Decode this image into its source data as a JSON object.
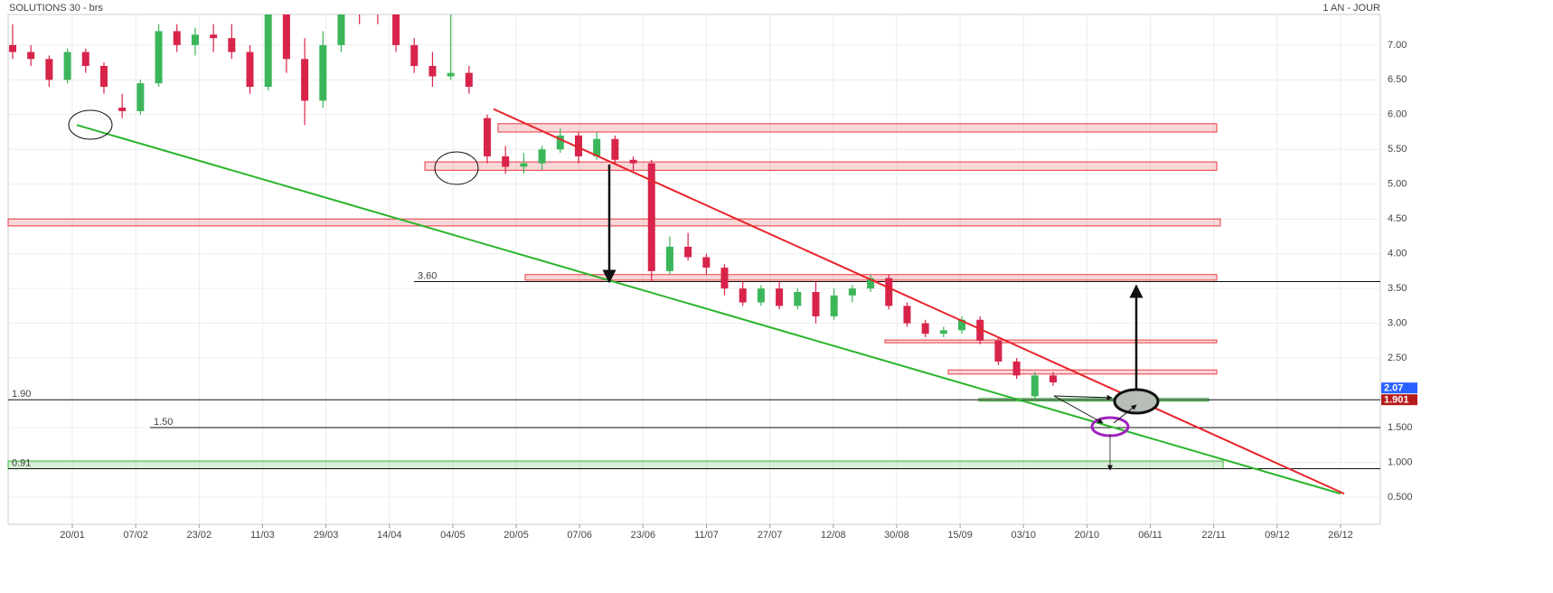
{
  "chart_data": {
    "type": "candlestick",
    "title": "SOLUTIONS 30 - brs",
    "period": "1 AN - JOUR",
    "ylim": [
      0.11,
      7.44
    ],
    "yticks": [
      {
        "value": 7,
        "label": "7.00"
      },
      {
        "value": 6.5,
        "label": "6.50"
      },
      {
        "value": 6,
        "label": "6.00"
      },
      {
        "value": 5.5,
        "label": "5.50"
      },
      {
        "value": 5,
        "label": "5.00"
      },
      {
        "value": 4.5,
        "label": "4.50"
      },
      {
        "value": 4,
        "label": "4.00"
      },
      {
        "value": 3.5,
        "label": "3.50"
      },
      {
        "value": 3,
        "label": "3.00"
      },
      {
        "value": 2.5,
        "label": "2.50"
      },
      {
        "value": 1.5,
        "label": "1.500"
      },
      {
        "value": 1,
        "label": "1.000"
      },
      {
        "value": 0.5,
        "label": "0.500"
      }
    ],
    "x_labels": [
      "20/01",
      "07/02",
      "23/02",
      "11/03",
      "29/03",
      "14/04",
      "04/05",
      "20/05",
      "07/06",
      "23/06",
      "11/07",
      "27/07",
      "12/08",
      "30/08",
      "15/09",
      "03/10",
      "20/10",
      "06/11",
      "22/11",
      "09/12",
      "26/12"
    ],
    "up_color": "#3cb65a",
    "down_color": "#d8244a",
    "candles": [
      [
        7.0,
        7.3,
        6.8,
        6.9
      ],
      [
        6.9,
        7.0,
        6.7,
        6.8
      ],
      [
        6.8,
        6.85,
        6.4,
        6.5
      ],
      [
        6.5,
        6.95,
        6.45,
        6.9
      ],
      [
        6.9,
        6.95,
        6.6,
        6.7
      ],
      [
        6.7,
        6.75,
        6.3,
        6.4
      ],
      [
        6.1,
        6.3,
        5.95,
        6.05
      ],
      [
        6.05,
        6.5,
        6.0,
        6.45
      ],
      [
        6.45,
        7.3,
        6.4,
        7.2
      ],
      [
        7.2,
        7.3,
        6.9,
        7.0
      ],
      [
        7.0,
        7.25,
        6.85,
        7.15
      ],
      [
        7.15,
        7.3,
        6.9,
        7.1
      ],
      [
        7.1,
        7.3,
        6.8,
        6.9
      ],
      [
        6.9,
        7.0,
        6.3,
        6.4
      ],
      [
        6.4,
        7.8,
        6.35,
        7.6
      ],
      [
        7.6,
        7.8,
        6.6,
        6.8
      ],
      [
        6.8,
        7.1,
        5.85,
        6.2
      ],
      [
        6.2,
        7.2,
        6.1,
        7.0
      ],
      [
        7.0,
        7.8,
        6.9,
        7.6
      ],
      [
        7.6,
        7.8,
        7.3,
        7.5
      ],
      [
        7.5,
        7.7,
        7.3,
        7.45
      ],
      [
        7.45,
        7.6,
        6.9,
        7.0
      ],
      [
        7.0,
        7.1,
        6.6,
        6.7
      ],
      [
        6.7,
        6.9,
        6.4,
        6.55
      ],
      [
        6.55,
        7.5,
        6.5,
        6.6
      ],
      [
        6.6,
        6.7,
        6.3,
        6.4
      ],
      [
        5.95,
        6.0,
        5.3,
        5.4
      ],
      [
        5.4,
        5.55,
        5.15,
        5.25
      ],
      [
        5.25,
        5.45,
        5.15,
        5.3
      ],
      [
        5.3,
        5.55,
        5.2,
        5.5
      ],
      [
        5.5,
        5.8,
        5.45,
        5.7
      ],
      [
        5.7,
        5.75,
        5.3,
        5.4
      ],
      [
        5.4,
        5.75,
        5.35,
        5.65
      ],
      [
        5.65,
        5.7,
        5.3,
        5.35
      ],
      [
        5.35,
        5.4,
        5.2,
        5.3
      ],
      [
        5.3,
        5.35,
        3.6,
        3.75
      ],
      [
        3.75,
        4.25,
        3.7,
        4.1
      ],
      [
        4.1,
        4.3,
        3.9,
        3.95
      ],
      [
        3.95,
        4.0,
        3.7,
        3.8
      ],
      [
        3.8,
        3.85,
        3.4,
        3.5
      ],
      [
        3.5,
        3.6,
        3.25,
        3.3
      ],
      [
        3.3,
        3.55,
        3.25,
        3.5
      ],
      [
        3.5,
        3.6,
        3.2,
        3.25
      ],
      [
        3.25,
        3.5,
        3.2,
        3.45
      ],
      [
        3.45,
        3.6,
        3.0,
        3.1
      ],
      [
        3.1,
        3.5,
        3.05,
        3.4
      ],
      [
        3.4,
        3.55,
        3.3,
        3.5
      ],
      [
        3.5,
        3.7,
        3.45,
        3.65
      ],
      [
        3.65,
        3.7,
        3.2,
        3.25
      ],
      [
        3.25,
        3.3,
        2.95,
        3.0
      ],
      [
        3.0,
        3.05,
        2.8,
        2.85
      ],
      [
        2.85,
        2.95,
        2.8,
        2.9
      ],
      [
        2.9,
        3.1,
        2.85,
        3.05
      ],
      [
        3.05,
        3.1,
        2.7,
        2.75
      ],
      [
        2.75,
        2.8,
        2.4,
        2.45
      ],
      [
        2.45,
        2.5,
        2.2,
        2.25
      ],
      [
        1.95,
        2.3,
        1.9,
        2.25
      ],
      [
        2.25,
        2.3,
        2.1,
        2.15
      ]
    ],
    "zones": [
      {
        "low": 5.75,
        "high": 5.87,
        "color": "#e8393f"
      },
      {
        "low": 5.2,
        "high": 5.32,
        "color": "#e8393f"
      },
      {
        "low": 4.4,
        "high": 4.5,
        "color": "#e8393f"
      },
      {
        "low": 3.62,
        "high": 3.7,
        "color": "#e8393f"
      },
      {
        "low": 2.72,
        "high": 2.76,
        "color": "#e8393f"
      },
      {
        "low": 2.27,
        "high": 2.33,
        "color": "#e8393f"
      },
      {
        "low": 1.88,
        "high": 1.92,
        "color": "#3cb63c"
      },
      {
        "low": 0.91,
        "high": 1.02,
        "color": "#3cb63c"
      }
    ],
    "levels": [
      {
        "value": 3.6,
        "label": "3.60"
      },
      {
        "value": 1.9,
        "label": "1.90"
      },
      {
        "value": 1.5,
        "label": "1.50"
      },
      {
        "value": 0.91,
        "label": "0.91"
      }
    ],
    "trendlines": [
      {
        "start": 5.85,
        "end": 0.55,
        "color": "#2bb52b"
      },
      {
        "start": 6.08,
        "end": 0.55,
        "color": "#e8252b"
      }
    ],
    "price_labels": [
      {
        "value": 2.07,
        "label": "2.07",
        "color": "#2962ff"
      },
      {
        "value": 1.901,
        "label": "1.901",
        "color": "#b71c1c"
      }
    ]
  }
}
